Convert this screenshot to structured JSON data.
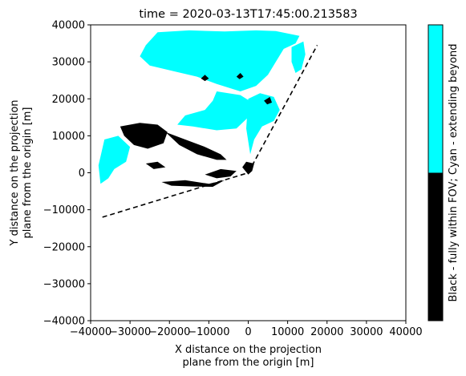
{
  "chart_data": {
    "type": "heatmap",
    "title": "time = 2020-03-13T17:45:00.213583",
    "xlabel": [
      "X distance on the projection",
      "plane from the origin [m]"
    ],
    "ylabel": [
      "Y distance on the projection",
      "plane from the origin [m]"
    ],
    "xlim": [
      -40000,
      40000
    ],
    "ylim": [
      -40000,
      40000
    ],
    "xticks": [
      -40000,
      -30000,
      -20000,
      -10000,
      0,
      10000,
      20000,
      30000,
      40000
    ],
    "yticks": [
      -40000,
      -30000,
      -20000,
      -10000,
      0,
      10000,
      20000,
      30000,
      40000
    ],
    "xtick_labels": [
      "−40000",
      "−30000",
      "−20000",
      "−10000",
      "0",
      "10000",
      "20000",
      "30000",
      "40000"
    ],
    "ytick_labels": [
      "−40000",
      "−30000",
      "−20000",
      "−10000",
      "0",
      "10000",
      "20000",
      "30000",
      "40000"
    ],
    "colors": {
      "cyan": "#00ffff",
      "black": "#000000"
    },
    "colorbar": {
      "label": "Black - fully within FOV; Cyan - extending beyond",
      "segments": [
        "black",
        "cyan"
      ]
    },
    "fov_boundary": {
      "style": "dashed",
      "points": [
        [
          -37000,
          -12000
        ],
        [
          0,
          0
        ],
        [
          17500,
          34500
        ]
      ]
    },
    "cyan_regions": [
      [
        [
          -26000,
          34500
        ],
        [
          -23000,
          38000
        ],
        [
          -15000,
          38500
        ],
        [
          -6000,
          38200
        ],
        [
          2000,
          38500
        ],
        [
          7000,
          38300
        ],
        [
          13000,
          37000
        ],
        [
          12000,
          35000
        ],
        [
          9000,
          33500
        ],
        [
          7000,
          30000
        ],
        [
          5000,
          26500
        ],
        [
          2000,
          23500
        ],
        [
          -2000,
          22000
        ],
        [
          -8000,
          24000
        ],
        [
          -13000,
          26000
        ],
        [
          -19000,
          27500
        ],
        [
          -25000,
          29000
        ],
        [
          -27500,
          31500
        ]
      ],
      [
        [
          -8000,
          22000
        ],
        [
          -2000,
          21000
        ],
        [
          1000,
          19000
        ],
        [
          0,
          15000
        ],
        [
          -3000,
          12000
        ],
        [
          -8000,
          11500
        ],
        [
          -14000,
          12500
        ],
        [
          -18000,
          13000
        ],
        [
          -16000,
          15500
        ],
        [
          -11000,
          17000
        ],
        [
          -9000,
          19500
        ]
      ],
      [
        [
          -30000,
          12000
        ],
        [
          -27500,
          13000
        ],
        [
          -26000,
          11000
        ],
        [
          -28000,
          9000
        ],
        [
          -30500,
          10000
        ]
      ],
      [
        [
          -36500,
          9000
        ],
        [
          -33000,
          10000
        ],
        [
          -30000,
          7000
        ],
        [
          -31000,
          3000
        ],
        [
          -34000,
          1000
        ],
        [
          -35500,
          -1500
        ],
        [
          -37500,
          -3000
        ],
        [
          -38000,
          2000
        ]
      ],
      [
        [
          0,
          20000
        ],
        [
          3000,
          21500
        ],
        [
          6500,
          20500
        ],
        [
          8000,
          17000
        ],
        [
          6500,
          14000
        ],
        [
          3500,
          12500
        ],
        [
          1500,
          9000
        ],
        [
          500,
          5000
        ],
        [
          -500,
          12000
        ]
      ],
      [
        [
          11000,
          34000
        ],
        [
          14000,
          35500
        ],
        [
          14500,
          32000
        ],
        [
          13500,
          28000
        ],
        [
          12000,
          27000
        ],
        [
          11000,
          30000
        ]
      ],
      [
        [
          -24000,
          33500
        ],
        [
          -21000,
          36500
        ],
        [
          -18000,
          36000
        ],
        [
          -17000,
          33500
        ],
        [
          -20000,
          32500
        ]
      ]
    ],
    "black_regions": [
      [
        [
          -32500,
          12500
        ],
        [
          -27500,
          13500
        ],
        [
          -23000,
          13000
        ],
        [
          -20500,
          11000
        ],
        [
          -21500,
          8000
        ],
        [
          -25500,
          6500
        ],
        [
          -29000,
          7500
        ],
        [
          -31500,
          10000
        ]
      ],
      [
        [
          -21000,
          11000
        ],
        [
          -16000,
          9000
        ],
        [
          -11000,
          7000
        ],
        [
          -7000,
          5000
        ],
        [
          -5500,
          3500
        ],
        [
          -8000,
          3500
        ],
        [
          -13000,
          5000
        ],
        [
          -17500,
          7500
        ]
      ],
      [
        [
          -26000,
          2500
        ],
        [
          -23000,
          3000
        ],
        [
          -21000,
          1500
        ],
        [
          -24000,
          1000
        ]
      ],
      [
        [
          -22000,
          -2500
        ],
        [
          -16000,
          -2000
        ],
        [
          -10000,
          -3000
        ],
        [
          -6000,
          -2000
        ],
        [
          -9000,
          -3800
        ],
        [
          -14000,
          -3700
        ],
        [
          -19500,
          -3500
        ]
      ],
      [
        [
          -11000,
          -500
        ],
        [
          -7000,
          1000
        ],
        [
          -3000,
          500
        ],
        [
          -4500,
          -1000
        ],
        [
          -8000,
          -1500
        ]
      ],
      [
        [
          -12000,
          25500
        ],
        [
          -11000,
          26500
        ],
        [
          -10000,
          25500
        ],
        [
          -11000,
          24800
        ]
      ],
      [
        [
          4000,
          19500
        ],
        [
          5500,
          20500
        ],
        [
          6000,
          19000
        ],
        [
          4800,
          18500
        ]
      ],
      [
        [
          -3000,
          26000
        ],
        [
          -2000,
          27000
        ],
        [
          -1200,
          26000
        ],
        [
          -2200,
          25300
        ]
      ],
      [
        [
          -1500,
          1500
        ],
        [
          -500,
          3000
        ],
        [
          1500,
          2500
        ],
        [
          1000,
          500
        ],
        [
          0,
          -500
        ]
      ]
    ],
    "grid": false
  }
}
